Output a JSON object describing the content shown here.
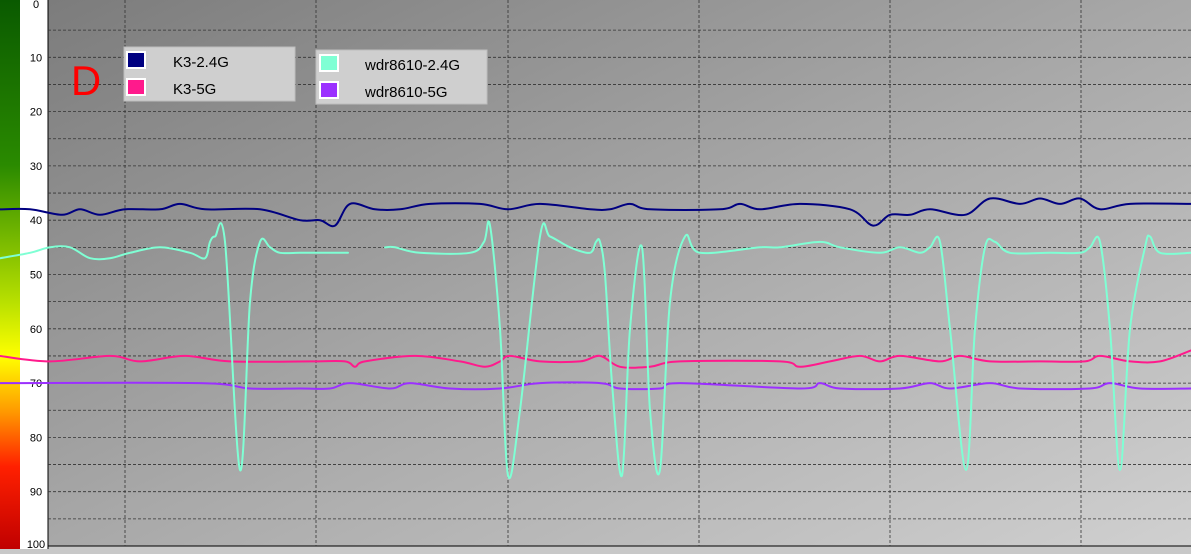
{
  "panel_label": "D",
  "chart_data": {
    "type": "line",
    "y_axis": {
      "ticks": [
        "0",
        "10",
        "20",
        "30",
        "40",
        "50",
        "60",
        "70",
        "80",
        "90",
        "100"
      ],
      "range": [
        0,
        100
      ],
      "inverted": true,
      "color_scale": "green at 0 through yellow near 60 to red at 100"
    },
    "x_axis": {
      "range": [
        0,
        1191
      ],
      "tick_labels_shown": false
    },
    "grid": true,
    "legend": {
      "placement": "top-left",
      "entries": [
        {
          "name": "K3-2.4G",
          "color": "#000080"
        },
        {
          "name": "K3-5G",
          "color": "#ff1a8c"
        },
        {
          "name": "wdr8610-2.4G",
          "color": "#7fffd4"
        },
        {
          "name": "wdr8610-5G",
          "color": "#9b30ff"
        }
      ]
    },
    "series": [
      {
        "name": "K3-2.4G",
        "color": "#000080",
        "points": [
          [
            0,
            38
          ],
          [
            30,
            38
          ],
          [
            62,
            39
          ],
          [
            80,
            38
          ],
          [
            100,
            39
          ],
          [
            125,
            38
          ],
          [
            160,
            38
          ],
          [
            180,
            37
          ],
          [
            205,
            38
          ],
          [
            260,
            38
          ],
          [
            300,
            40
          ],
          [
            320,
            40
          ],
          [
            335,
            41
          ],
          [
            350,
            37
          ],
          [
            375,
            38
          ],
          [
            400,
            38
          ],
          [
            430,
            37
          ],
          [
            480,
            37
          ],
          [
            508,
            38
          ],
          [
            540,
            37
          ],
          [
            590,
            38
          ],
          [
            610,
            38
          ],
          [
            630,
            37
          ],
          [
            650,
            38
          ],
          [
            720,
            38
          ],
          [
            740,
            37
          ],
          [
            760,
            38
          ],
          [
            800,
            37
          ],
          [
            850,
            38
          ],
          [
            873,
            41
          ],
          [
            890,
            39
          ],
          [
            910,
            39
          ],
          [
            930,
            38
          ],
          [
            965,
            39
          ],
          [
            990,
            36
          ],
          [
            1020,
            37
          ],
          [
            1040,
            36
          ],
          [
            1060,
            37
          ],
          [
            1080,
            36
          ],
          [
            1100,
            38
          ],
          [
            1130,
            37
          ],
          [
            1191,
            37
          ]
        ]
      },
      {
        "name": "K3-5G",
        "color": "#ff1a8c",
        "points": [
          [
            0,
            65
          ],
          [
            50,
            66
          ],
          [
            110,
            65
          ],
          [
            140,
            66
          ],
          [
            185,
            65
          ],
          [
            230,
            66
          ],
          [
            310,
            66
          ],
          [
            345,
            66
          ],
          [
            355,
            67
          ],
          [
            365,
            66
          ],
          [
            415,
            65
          ],
          [
            460,
            66
          ],
          [
            485,
            67
          ],
          [
            500,
            66
          ],
          [
            510,
            65
          ],
          [
            540,
            66
          ],
          [
            580,
            66
          ],
          [
            600,
            65
          ],
          [
            620,
            67
          ],
          [
            650,
            67
          ],
          [
            680,
            66
          ],
          [
            780,
            66
          ],
          [
            800,
            67
          ],
          [
            830,
            66
          ],
          [
            860,
            65
          ],
          [
            880,
            66
          ],
          [
            900,
            65
          ],
          [
            940,
            66
          ],
          [
            960,
            65
          ],
          [
            990,
            66
          ],
          [
            1040,
            66
          ],
          [
            1085,
            66
          ],
          [
            1100,
            65
          ],
          [
            1130,
            66
          ],
          [
            1160,
            66
          ],
          [
            1191,
            64
          ]
        ]
      },
      {
        "name": "wdr8610-5G",
        "color": "#9b30ff",
        "points": [
          [
            0,
            70
          ],
          [
            200,
            70
          ],
          [
            250,
            71
          ],
          [
            300,
            71
          ],
          [
            330,
            71
          ],
          [
            350,
            70
          ],
          [
            390,
            71
          ],
          [
            410,
            70
          ],
          [
            450,
            71
          ],
          [
            500,
            71
          ],
          [
            540,
            70
          ],
          [
            600,
            70
          ],
          [
            620,
            71
          ],
          [
            660,
            71
          ],
          [
            680,
            70
          ],
          [
            800,
            71
          ],
          [
            820,
            70
          ],
          [
            840,
            71
          ],
          [
            900,
            71
          ],
          [
            930,
            70
          ],
          [
            950,
            71
          ],
          [
            990,
            70
          ],
          [
            1020,
            71
          ],
          [
            1090,
            71
          ],
          [
            1110,
            70
          ],
          [
            1140,
            71
          ],
          [
            1191,
            71
          ]
        ]
      },
      {
        "name": "wdr8610-2.4G",
        "color": "#7fffd4",
        "segments": [
          [
            [
              0,
              47
            ],
            [
              30,
              46
            ],
            [
              50,
              45
            ],
            [
              70,
              45
            ],
            [
              90,
              47
            ],
            [
              110,
              47
            ],
            [
              130,
              46
            ],
            [
              160,
              45
            ],
            [
              190,
              46
            ],
            [
              205,
              47
            ],
            [
              210,
              44
            ],
            [
              215,
              43
            ],
            [
              225,
              44
            ],
            [
              240,
              86
            ],
            [
              250,
              55
            ],
            [
              260,
              44
            ],
            [
              270,
              45
            ],
            [
              280,
              46
            ],
            [
              300,
              46
            ],
            [
              320,
              46
            ],
            [
              348,
              46
            ]
          ],
          [
            [
              385,
              45
            ],
            [
              395,
              45
            ],
            [
              420,
              46
            ],
            [
              470,
              46
            ],
            [
              484,
              44
            ],
            [
              490,
              41
            ],
            [
              500,
              60
            ],
            [
              508,
              87
            ],
            [
              520,
              75
            ],
            [
              540,
              43
            ],
            [
              550,
              43
            ],
            [
              570,
              45
            ],
            [
              590,
              46
            ],
            [
              596,
              44
            ],
            [
              600,
              44
            ],
            [
              605,
              50
            ],
            [
              612,
              70
            ],
            [
              622,
              87
            ],
            [
              630,
              60
            ],
            [
              642,
              45
            ],
            [
              650,
              75
            ],
            [
              660,
              86
            ],
            [
              670,
              55
            ],
            [
              685,
              43
            ],
            [
              700,
              46
            ],
            [
              760,
              45
            ],
            [
              780,
              45
            ],
            [
              820,
              44
            ],
            [
              840,
              45
            ],
            [
              880,
              46
            ],
            [
              900,
              45
            ],
            [
              920,
              46
            ],
            [
              930,
              45
            ],
            [
              940,
              44
            ],
            [
              950,
              60
            ],
            [
              966,
              86
            ],
            [
              975,
              60
            ],
            [
              985,
              45
            ],
            [
              995,
              44
            ],
            [
              1010,
              46
            ],
            [
              1050,
              46
            ],
            [
              1080,
              46
            ],
            [
              1090,
              45
            ],
            [
              1100,
              44
            ],
            [
              1110,
              60
            ],
            [
              1120,
              86
            ],
            [
              1130,
              60
            ],
            [
              1145,
              45
            ],
            [
              1150,
              43
            ],
            [
              1160,
              46
            ],
            [
              1191,
              46
            ]
          ]
        ]
      }
    ]
  }
}
